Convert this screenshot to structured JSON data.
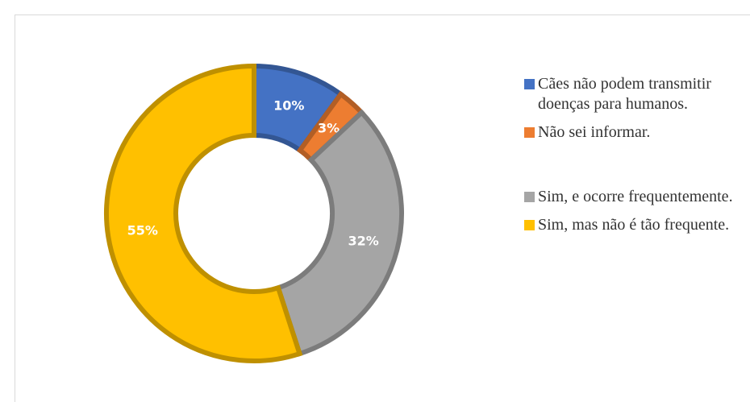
{
  "chart_data": {
    "type": "donut",
    "categories": [
      "Cães não podem transmitir doenças para humanos.",
      "Não sei informar.",
      "Sim, e ocorre frequentemente.",
      "Sim, mas não é tão frequente."
    ],
    "values": [
      10,
      3,
      32,
      55
    ],
    "value_labels": [
      "10%",
      "3%",
      "32%",
      "55%"
    ],
    "colors": [
      "#4472c4",
      "#ed7d31",
      "#a5a5a5",
      "#ffc000"
    ],
    "legend": "right"
  }
}
